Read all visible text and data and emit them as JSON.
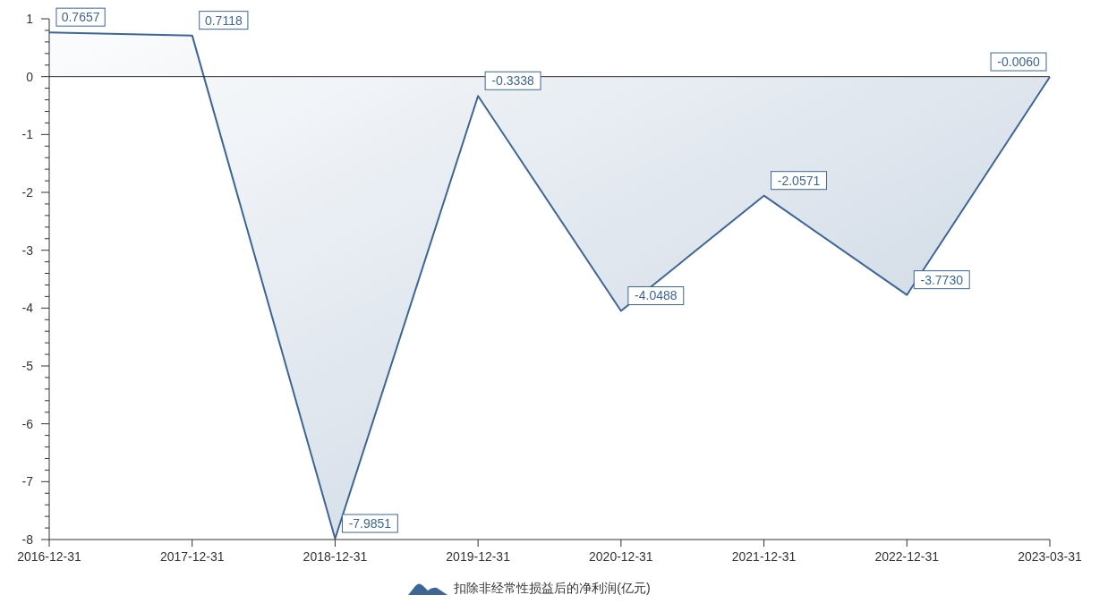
{
  "chart_data": {
    "type": "area",
    "categories": [
      "2016-12-31",
      "2017-12-31",
      "2018-12-31",
      "2019-12-31",
      "2020-12-31",
      "2021-12-31",
      "2022-12-31",
      "2023-03-31"
    ],
    "series": [
      {
        "name": "扣除非经常性损益后的净利润(亿元)",
        "color": "#3d6697",
        "values": [
          0.7657,
          0.7118,
          -7.9851,
          -0.3338,
          -4.0488,
          -2.0571,
          -3.773,
          -0.006
        ],
        "value_labels": [
          "0.7657",
          "0.7118",
          "-7.9851",
          "-0.3338",
          "-4.0488",
          "-2.0571",
          "-3.7730",
          "-0.0060"
        ]
      }
    ],
    "ylim": [
      -8,
      1
    ],
    "yticks": [
      -8,
      {
        "value": -7.8,
        "label": null
      },
      {
        "value": -7.6,
        "label": null
      },
      {
        "value": -7.4,
        "label": null
      },
      {
        "value": -7.2,
        "label": null
      },
      -7,
      {
        "value": -6.8,
        "label": null
      },
      {
        "value": -6.6,
        "label": null
      },
      {
        "value": -6.4,
        "label": null
      },
      {
        "value": -6.2,
        "label": null
      },
      -6,
      {
        "value": -5.8,
        "label": null
      },
      {
        "value": -5.6,
        "label": null
      },
      {
        "value": -5.4,
        "label": null
      },
      {
        "value": -5.2,
        "label": null
      },
      -5,
      {
        "value": -4.8,
        "label": null
      },
      {
        "value": -4.6,
        "label": null
      },
      {
        "value": -4.4,
        "label": null
      },
      {
        "value": -4.2,
        "label": null
      },
      -4,
      {
        "value": -3.8,
        "label": null
      },
      {
        "value": -3.6,
        "label": null
      },
      {
        "value": -3.4,
        "label": null
      },
      {
        "value": -3.2,
        "label": null
      },
      -3,
      {
        "value": -2.8,
        "label": null
      },
      {
        "value": -2.6,
        "label": null
      },
      {
        "value": -2.4,
        "label": null
      },
      {
        "value": -2.2,
        "label": null
      },
      -2,
      {
        "value": -1.8,
        "label": null
      },
      {
        "value": -1.6,
        "label": null
      },
      {
        "value": -1.4,
        "label": null
      },
      {
        "value": -1.2,
        "label": null
      },
      -1,
      {
        "value": -0.8,
        "label": null
      },
      {
        "value": -0.6,
        "label": null
      },
      {
        "value": -0.4,
        "label": null
      },
      {
        "value": -0.2,
        "label": null
      },
      0,
      {
        "value": 0.2,
        "label": null
      },
      {
        "value": 0.4,
        "label": null
      },
      {
        "value": 0.6,
        "label": null
      },
      {
        "value": 0.8,
        "label": null
      },
      1
    ],
    "ref_lines": [
      {
        "axis": "y",
        "value": 0,
        "color": "#333333"
      }
    ],
    "marker": "none",
    "legend": "bottom"
  }
}
